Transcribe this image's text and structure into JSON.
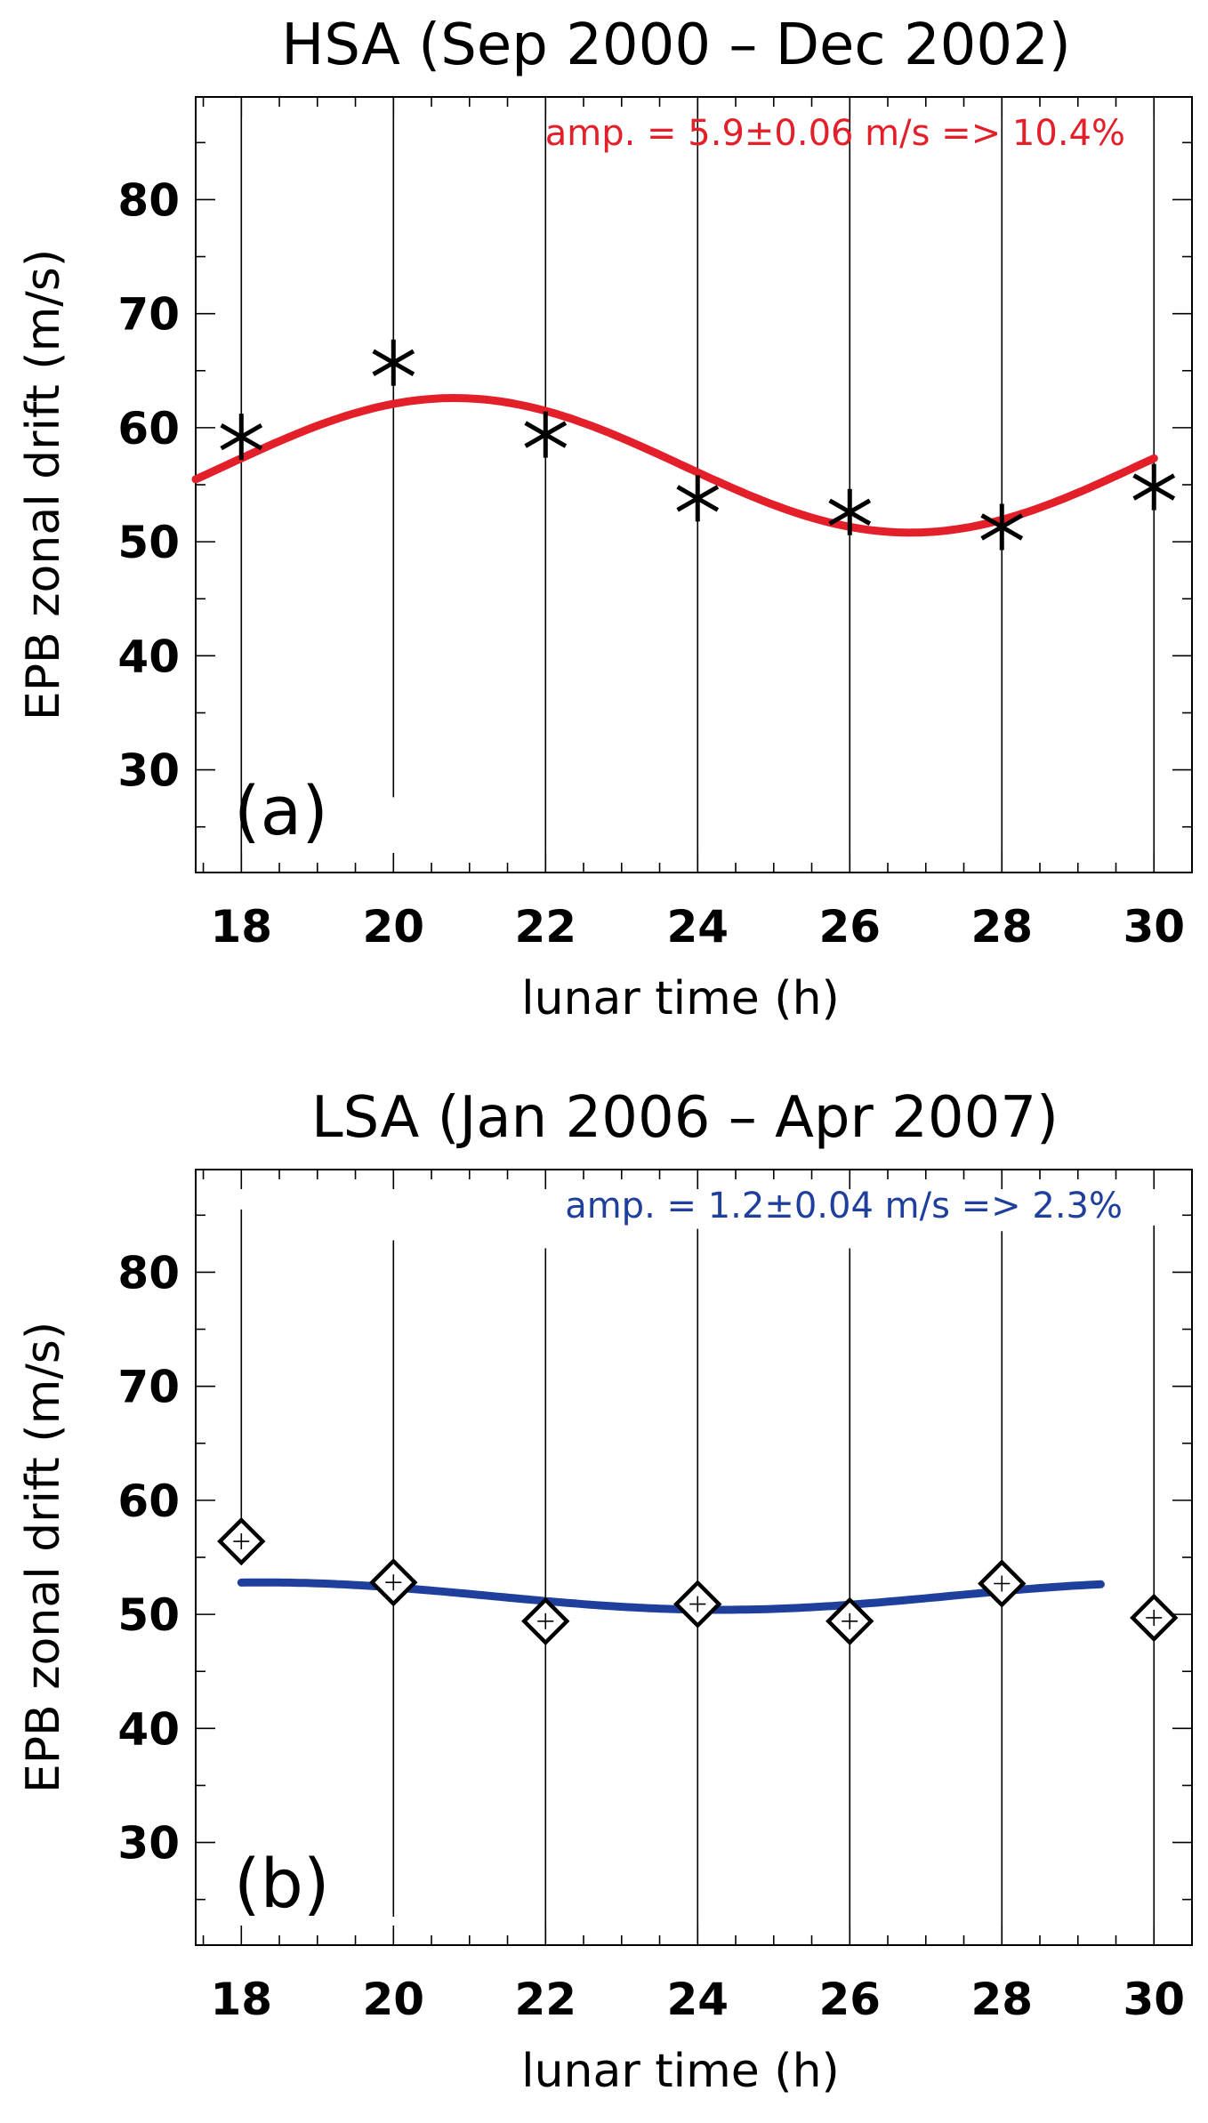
{
  "chart_data": [
    {
      "type": "scatter",
      "title": "HSA (Sep 2000 – Dec 2002)",
      "xlabel": "lunar time (h)",
      "ylabel": "EPB zonal drift (m/s)",
      "annotation": "amp. = 5.9±0.06 m/s => 10.4%",
      "panel_label": "(a)",
      "xlim": [
        17.4,
        30.5
      ],
      "ylim": [
        21,
        89
      ],
      "x_ticks": [
        18,
        20,
        22,
        24,
        26,
        28,
        30
      ],
      "y_ticks": [
        30,
        40,
        50,
        60,
        70,
        80
      ],
      "marker": "asterisk",
      "fit_color": "#e3202a",
      "points": {
        "x": [
          18,
          20,
          22,
          24,
          26,
          28,
          30
        ],
        "y": [
          59.2,
          65.7,
          59.4,
          53.8,
          52.6,
          51.3,
          54.8
        ]
      },
      "vertical_lines": [
        {
          "x": 18,
          "y_from": 21,
          "y_to": 89
        },
        {
          "x": 20,
          "y_from": 27.6,
          "y_to": 89
        },
        {
          "x": 22,
          "y_from": 21,
          "y_to": 89
        },
        {
          "x": 24,
          "y_from": 21,
          "y_to": 89
        },
        {
          "x": 26,
          "y_from": 21,
          "y_to": 89
        },
        {
          "x": 28,
          "y_from": 21,
          "y_to": 89
        },
        {
          "x": 30,
          "y_from": 21,
          "y_to": 89
        }
      ],
      "fit": {
        "mean": 56.7,
        "amplitude": 5.9,
        "peak_x": 20.8,
        "period": 12,
        "x_range": [
          17.4,
          30
        ]
      }
    },
    {
      "type": "scatter",
      "title": "LSA (Jan 2006 – Apr 2007)",
      "xlabel": "lunar time (h)",
      "ylabel": "EPB zonal drift (m/s)",
      "annotation": "amp. = 1.2±0.04 m/s => 2.3%",
      "panel_label": "(b)",
      "xlim": [
        17.4,
        30.5
      ],
      "ylim": [
        21,
        89
      ],
      "x_ticks": [
        18,
        20,
        22,
        24,
        26,
        28,
        30
      ],
      "y_ticks": [
        30,
        40,
        50,
        60,
        70,
        80
      ],
      "marker": "diamond",
      "fit_color": "#1f3f9c",
      "points": {
        "x": [
          18,
          20,
          22,
          24,
          26,
          28,
          30
        ],
        "y": [
          56.4,
          52.8,
          49.4,
          50.9,
          49.4,
          52.7,
          49.7
        ]
      },
      "vertical_lines": [
        {
          "x": 18,
          "y_from": 57.8,
          "y_to": 85.5
        },
        {
          "x": 20,
          "y_from": 23.5,
          "y_to": 82.8
        },
        {
          "x": 22,
          "y_from": 21,
          "y_to": 82.1
        },
        {
          "x": 24,
          "y_from": 21,
          "y_to": 83.8
        },
        {
          "x": 26,
          "y_from": 21,
          "y_to": 82.1
        },
        {
          "x": 28,
          "y_from": 21,
          "y_to": 83.6
        },
        {
          "x": 30,
          "y_from": 21,
          "y_to": 84.1
        }
      ],
      "fit": {
        "mean": 51.6,
        "amplitude": 1.2,
        "peak_x": 18.3,
        "period": 12,
        "x_range": [
          18,
          29.3
        ]
      }
    }
  ]
}
